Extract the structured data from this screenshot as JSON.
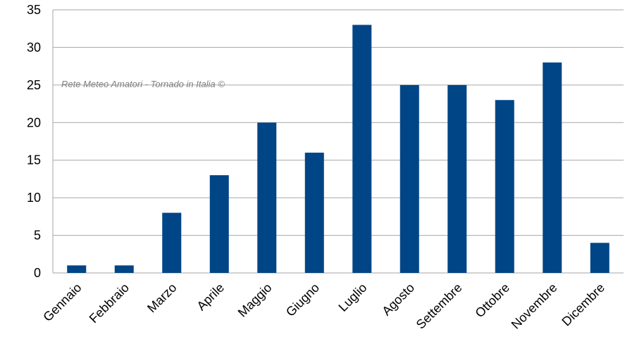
{
  "chart_data": {
    "type": "bar",
    "categories": [
      "Gennaio",
      "Febbraio",
      "Marzo",
      "Aprile",
      "Maggio",
      "Giugno",
      "Luglio",
      "Agosto",
      "Settembre",
      "Ottobre",
      "Novembre",
      "Dicembre"
    ],
    "values": [
      1,
      1,
      8,
      13,
      20,
      16,
      33,
      25,
      25,
      23,
      28,
      4
    ],
    "title": "",
    "xlabel": "",
    "ylabel": "",
    "ylim": [
      0,
      35
    ],
    "yticks": [
      0,
      5,
      10,
      15,
      20,
      25,
      30,
      35
    ],
    "grid": "horizontal",
    "legend": "none",
    "bar_color": "#004586",
    "grid_color": "#a6a6a6"
  },
  "watermark": "Rete Meteo Amatori - Tornado in Italia ©"
}
